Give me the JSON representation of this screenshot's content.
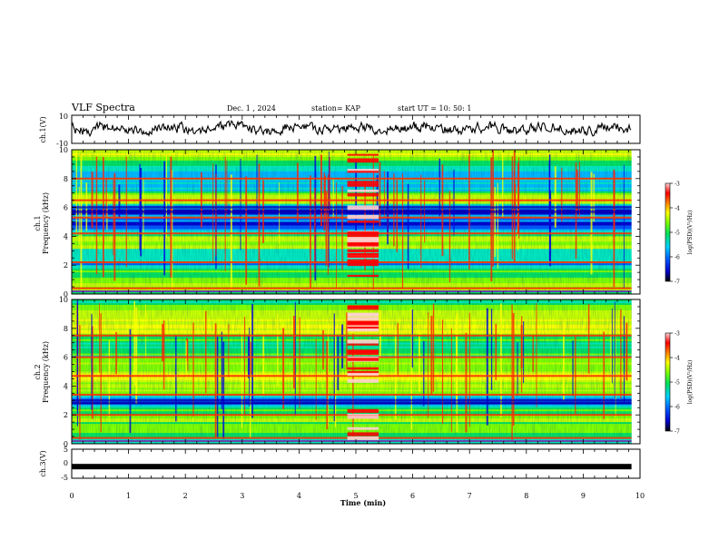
{
  "header": {
    "title": "VLF Spectra",
    "date": "Dec. 1 , 2024",
    "station": "station= KAP",
    "start": "start  UT =   10: 50: 1"
  },
  "chart_data": [
    {
      "type": "line",
      "ylabel": "ch.1(V)",
      "ylim": [
        -10,
        10
      ],
      "yticks": [
        "10",
        "-10"
      ],
      "xlim": [
        0,
        10
      ],
      "series_note": "noisy waveform"
    },
    {
      "type": "heatmap",
      "ylabel": "ch.1\nFrequency (kHz)",
      "ylabel_lines": [
        "ch.1",
        "Frequency (kHz)"
      ],
      "ylim": [
        0,
        10
      ],
      "yticks": [
        "0",
        "2",
        "4",
        "6",
        "8",
        "10"
      ],
      "xlim": [
        0,
        10
      ],
      "bright_bands_khz": [
        0.4,
        2.2,
        4.2,
        5.3,
        6.5,
        8.0
      ],
      "weak_bands_khz": [
        5.7,
        6.0
      ],
      "burst_interval_min": [
        4.85,
        5.4
      ]
    },
    {
      "type": "heatmap",
      "ylabel_lines": [
        "ch.2",
        "Frequency (kHz)"
      ],
      "ylim": [
        0,
        10
      ],
      "yticks": [
        "0",
        "2",
        "4",
        "6",
        "8",
        "10"
      ],
      "xlim": [
        0,
        10
      ],
      "bright_bands_khz": [
        0.4,
        2.0,
        3.4,
        4.7,
        6.0,
        7.5
      ],
      "weak_bands_khz": [
        2.8,
        3.0
      ],
      "burst_interval_min": [
        4.85,
        5.4
      ]
    },
    {
      "type": "line",
      "ylabel": "ch.3(V)",
      "ylim": [
        -5,
        5
      ],
      "yticks": [
        "5",
        "0",
        "-5"
      ],
      "xlim": [
        0,
        10
      ],
      "constant_value": -1.0
    }
  ],
  "xaxis": {
    "label": "Time  (min)",
    "ticks": [
      "0",
      "1",
      "2",
      "3",
      "4",
      "5",
      "6",
      "7",
      "8",
      "9",
      "10"
    ],
    "data_end_min": 9.85
  },
  "colorbars": [
    {
      "label": "log(PSD)(V²/Hz)",
      "ticks": [
        "-3",
        "-4",
        "-5",
        "-6",
        "-7"
      ],
      "range": [
        -7,
        -3
      ]
    },
    {
      "label": "log(PSD)(V²/Hz)",
      "ticks": [
        "-3",
        "-4",
        "-5",
        "-6",
        "-7"
      ],
      "range": [
        -7,
        -3
      ]
    }
  ],
  "colors": {
    "axis": "#000000",
    "background": "#ffffff",
    "trace": "#000000"
  }
}
